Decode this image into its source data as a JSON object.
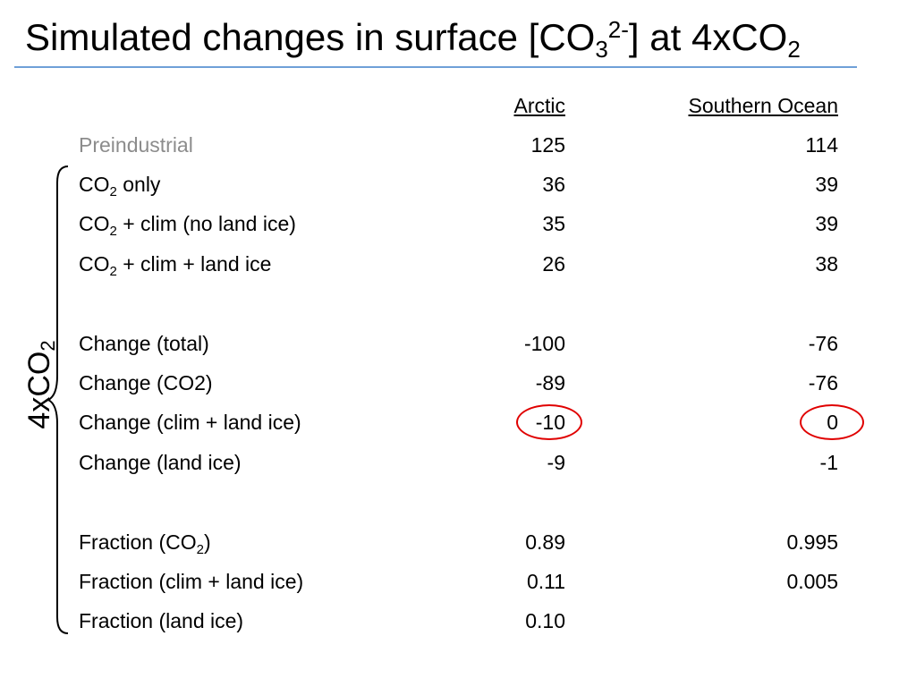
{
  "title": {
    "text": "Simulated changes in surface [CO",
    "sub": "3",
    "sup": "2-",
    "mid": "] at 4xCO",
    "end_sub": "2"
  },
  "columns": {
    "arctic": "Arctic",
    "southern": "Southern Ocean"
  },
  "side_label": {
    "text": "4xCO",
    "sub": "2"
  },
  "rows": [
    {
      "label": "Preindustrial",
      "arctic": "125",
      "southern": "114"
    },
    {
      "label": "CO",
      "sub": "2",
      "suffix": " only",
      "arctic": "36",
      "southern": "39"
    },
    {
      "label": "CO",
      "sub": "2",
      "suffix": " + clim (no land ice)",
      "arctic": "35",
      "southern": "39"
    },
    {
      "label": "CO",
      "sub": "2",
      "suffix": " + clim + land ice",
      "arctic": "26",
      "southern": "38"
    },
    {
      "label": "Change (total)",
      "arctic": "-100",
      "southern": "-76"
    },
    {
      "label": "Change (CO2)",
      "arctic": "-89",
      "southern": "-76"
    },
    {
      "label": "Change (clim + land ice)",
      "arctic": "-10",
      "southern": "0"
    },
    {
      "label": "Change (land ice)",
      "arctic": "-9",
      "southern": "-1"
    },
    {
      "label": "Fraction (CO",
      "sub": "2",
      "suffix": ")",
      "arctic": "0.89",
      "southern": "0.995"
    },
    {
      "label": "Fraction (clim + land ice)",
      "arctic": "0.11",
      "southern": "0.005"
    },
    {
      "label": "Fraction (land ice)",
      "arctic": "0.10",
      "southern": ""
    }
  ],
  "highlight_color": "#e00000",
  "rule_color": "#6fa0d8"
}
